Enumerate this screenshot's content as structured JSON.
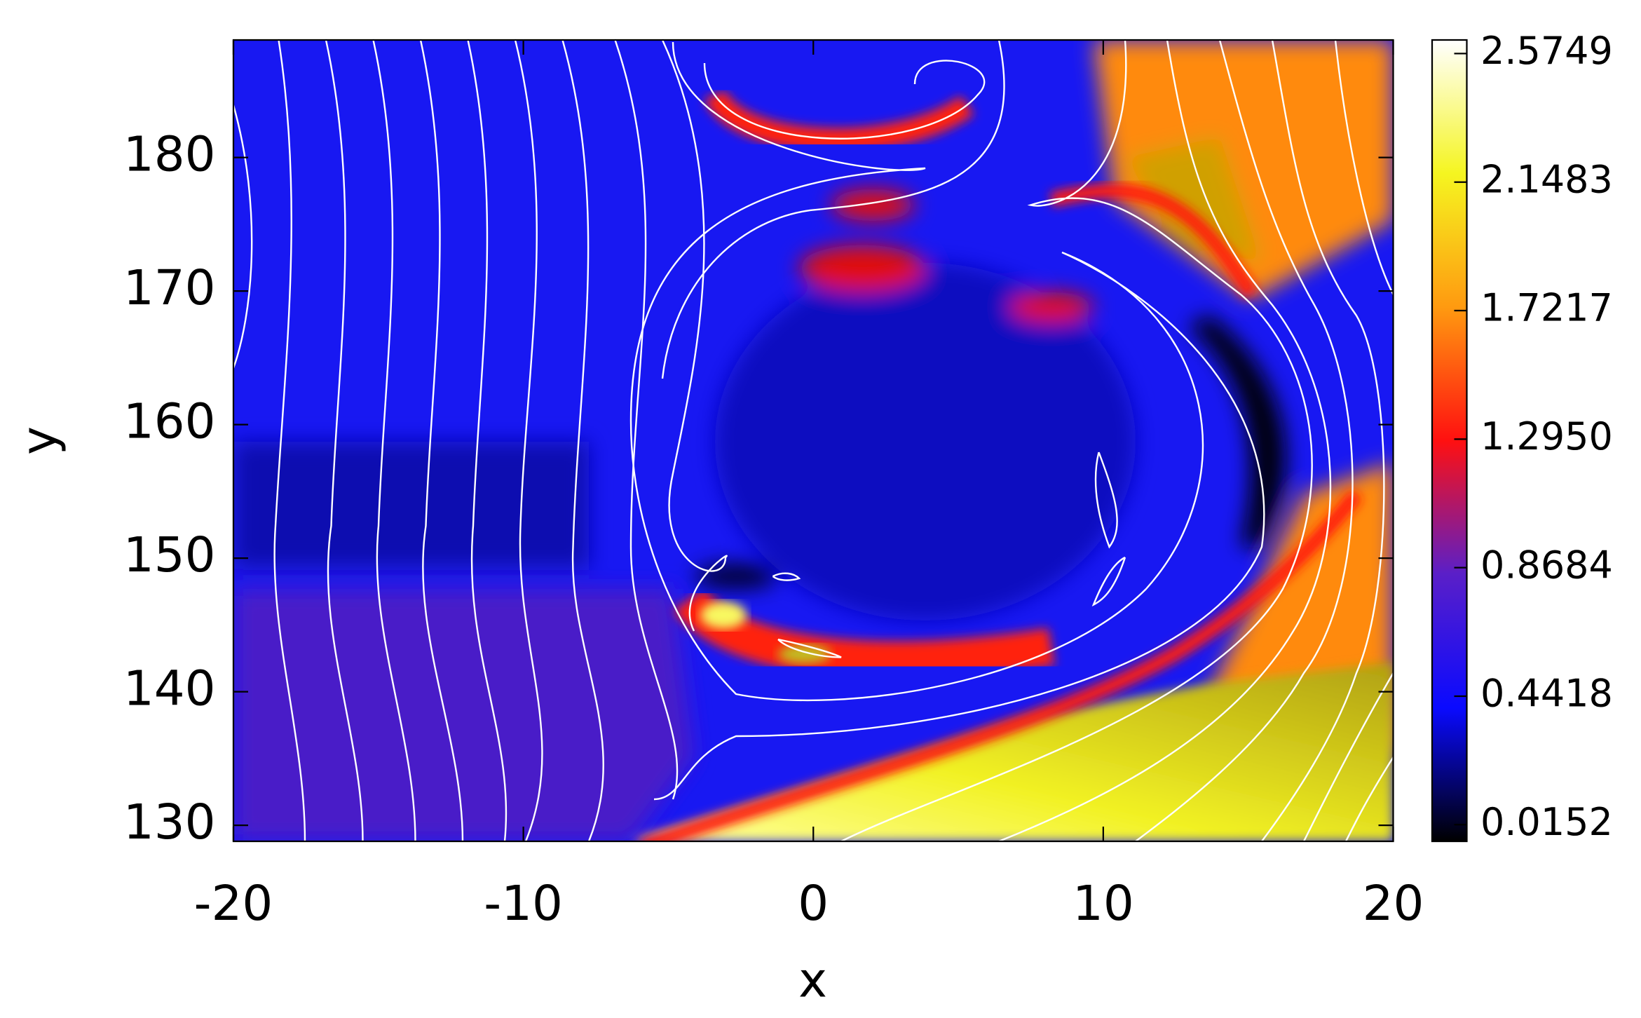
{
  "chart_data": {
    "type": "contour",
    "xlabel": "x",
    "ylabel": "y",
    "xlim": [
      -20,
      20
    ],
    "ylim": [
      128.8,
      188.8
    ],
    "xticks": [
      -20,
      -10,
      0,
      10,
      20
    ],
    "yticks": [
      130,
      140,
      150,
      160,
      170,
      180
    ],
    "colorbar": {
      "lim": [
        -0.04,
        2.62
      ],
      "ticks": [
        0.0152,
        0.4418,
        0.8684,
        {
          "value": 1.295,
          "label": "1.2950"
        },
        1.7217,
        2.1483,
        2.5749
      ],
      "colormap": [
        "#000000",
        "#0a0aff",
        "#5a1fc8",
        "#ff1010",
        "#ff9a10",
        "#f5f520",
        "#ffffff"
      ]
    }
  }
}
